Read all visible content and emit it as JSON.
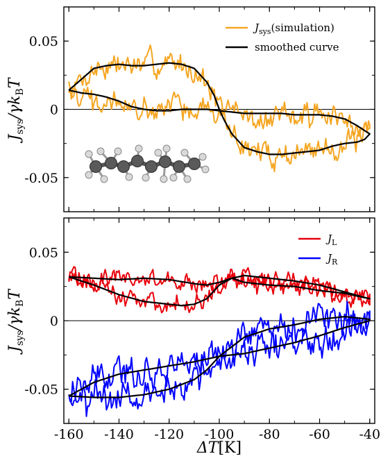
{
  "chart_data": [
    {
      "type": "line",
      "panel": "top",
      "ylabel": "Jsys/γkBT",
      "xlabel": "",
      "xlim": [
        -162,
        -38
      ],
      "ylim": [
        -0.075,
        0.075
      ],
      "x_ticks": [
        -160,
        -140,
        -120,
        -100,
        -80,
        -60,
        -40
      ],
      "y_ticks": [
        0.05,
        0,
        -0.05
      ],
      "y_tick_labels": [
        "0.05",
        "0",
        "-0.05"
      ],
      "zero_line": true,
      "legend_position": "top-right",
      "legend": [
        {
          "label": "Jsys(simulation)",
          "color": "#f5a623"
        },
        {
          "label": "smoothed curve",
          "color": "#000000"
        }
      ],
      "inset": "molecule-image",
      "series": [
        {
          "name": "smoothed curve",
          "color": "#000000",
          "loop": {
            "upper_x": [
              -160,
              -155,
              -150,
              -145,
              -140,
              -135,
              -130,
              -125,
              -120,
              -115,
              -110,
              -105,
              -102,
              -100,
              -98,
              -95,
              -90,
              -85,
              -80,
              -75,
              -70,
              -65,
              -60,
              -55,
              -50,
              -45,
              -42,
              -40
            ],
            "upper_y": [
              0.014,
              0.022,
              0.03,
              0.032,
              0.033,
              0.032,
              0.032,
              0.033,
              0.034,
              0.033,
              0.03,
              0.02,
              0.01,
              0.0,
              -0.008,
              -0.018,
              -0.028,
              -0.031,
              -0.033,
              -0.033,
              -0.032,
              -0.031,
              -0.03,
              -0.027,
              -0.025,
              -0.024,
              -0.022,
              -0.018
            ],
            "lower_x": [
              -40,
              -45,
              -50,
              -55,
              -60,
              -65,
              -70,
              -75,
              -80,
              -85,
              -90,
              -95,
              -100,
              -105,
              -110,
              -115,
              -120,
              -125,
              -130,
              -135,
              -140,
              -145,
              -150,
              -155,
              -160
            ],
            "lower_y": [
              -0.018,
              -0.012,
              -0.007,
              -0.005,
              -0.004,
              -0.004,
              -0.004,
              -0.003,
              -0.003,
              -0.003,
              -0.003,
              -0.002,
              -0.001,
              0.0,
              0.0,
              0.0,
              -0.001,
              -0.001,
              0.0,
              0.002,
              0.006,
              0.009,
              0.011,
              0.012,
              0.014
            ]
          }
        },
        {
          "name": "Jsys(simulation)",
          "color": "#f5a623",
          "noise_amplitude": 0.009
        }
      ]
    },
    {
      "type": "line",
      "panel": "bottom",
      "ylabel": "Jsys/γkBT",
      "xlabel": "ΔT[K]",
      "xlim": [
        -162,
        -38
      ],
      "ylim": [
        -0.075,
        0.075
      ],
      "x_ticks": [
        -160,
        -140,
        -120,
        -100,
        -80,
        -60,
        -40
      ],
      "x_tick_labels": [
        "-160",
        "-140",
        "-120",
        "-100",
        "-80",
        "-60",
        "-40"
      ],
      "y_ticks": [
        0.05,
        0,
        -0.05
      ],
      "y_tick_labels": [
        "0.05",
        "0",
        "-0.05"
      ],
      "zero_line": true,
      "legend_position": "top-right",
      "legend": [
        {
          "label": "JL",
          "color": "#e8000b"
        },
        {
          "label": "JR",
          "color": "#0000ff"
        }
      ],
      "series": [
        {
          "name": "JL",
          "color": "#e8000b",
          "smooth_color": "#000000",
          "loop": {
            "upper_x": [
              -160,
              -150,
              -140,
              -130,
              -120,
              -110,
              -105,
              -100,
              -95,
              -90,
              -80,
              -70,
              -60,
              -50,
              -40
            ],
            "upper_y": [
              0.032,
              0.031,
              0.03,
              0.031,
              0.03,
              0.027,
              0.026,
              0.028,
              0.031,
              0.033,
              0.031,
              0.029,
              0.026,
              0.021,
              0.016
            ],
            "lower_x": [
              -40,
              -50,
              -60,
              -70,
              -80,
              -90,
              -95,
              -100,
              -105,
              -110,
              -115,
              -120,
              -130,
              -140,
              -150,
              -160
            ],
            "lower_y": [
              0.016,
              0.02,
              0.022,
              0.025,
              0.026,
              0.028,
              0.031,
              0.026,
              0.016,
              0.012,
              0.011,
              0.012,
              0.014,
              0.019,
              0.026,
              0.032
            ]
          },
          "noise_amplitude": 0.007
        },
        {
          "name": "JR",
          "color": "#0000ff",
          "smooth_color": "#000000",
          "loop": {
            "upper_x": [
              -160,
              -150,
              -140,
              -130,
              -120,
              -110,
              -100,
              -90,
              -80,
              -70,
              -60,
              -50,
              -40
            ],
            "upper_y": [
              -0.055,
              -0.045,
              -0.039,
              -0.036,
              -0.033,
              -0.03,
              -0.026,
              -0.024,
              -0.02,
              -0.016,
              -0.011,
              -0.005,
              0.0
            ],
            "lower_x": [
              -40,
              -50,
              -60,
              -70,
              -80,
              -90,
              -100,
              -105,
              -110,
              -120,
              -130,
              -140,
              -150,
              -160
            ],
            "lower_y": [
              0.001,
              0.003,
              0.001,
              -0.003,
              -0.006,
              -0.012,
              -0.026,
              -0.036,
              -0.043,
              -0.05,
              -0.054,
              -0.056,
              -0.056,
              -0.055
            ]
          },
          "noise_amplitude": 0.011
        }
      ]
    }
  ]
}
